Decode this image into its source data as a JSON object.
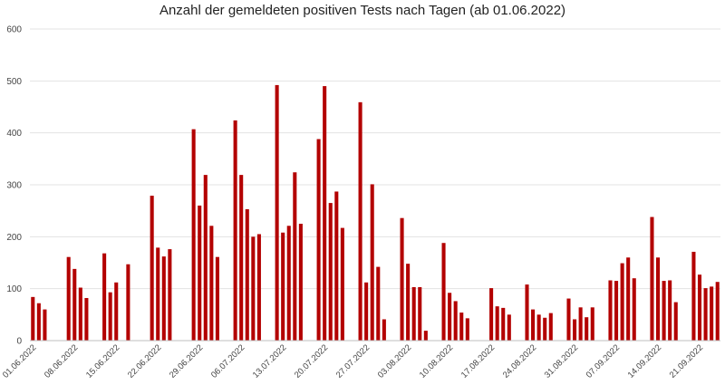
{
  "chart_data": {
    "type": "bar",
    "title": "Anzahl der gemeldeten positiven Tests nach Tagen (ab 01.06.2022)",
    "xlabel": "",
    "ylabel": "",
    "ylim": [
      0,
      600
    ],
    "yticks": [
      0,
      100,
      200,
      300,
      400,
      500,
      600
    ],
    "grid": true,
    "legend": "none",
    "bar_color": "#B30000",
    "x_tick_labels": [
      "01.06.2022",
      "08.06.2022",
      "15.06.2022",
      "22.06.2022",
      "29.06.2022",
      "06.07.2022",
      "13.07.2022",
      "20.07.2022",
      "27.07.2022",
      "03.08.2022",
      "10.08.2022",
      "17.08.2022",
      "24.08.2022",
      "31.08.2022",
      "07.09.2022",
      "14.09.2022",
      "21.09.2022"
    ],
    "categories": [
      "01.06.2022",
      "02.06.2022",
      "03.06.2022",
      "04.06.2022",
      "05.06.2022",
      "06.06.2022",
      "07.06.2022",
      "08.06.2022",
      "09.06.2022",
      "10.06.2022",
      "11.06.2022",
      "12.06.2022",
      "13.06.2022",
      "14.06.2022",
      "15.06.2022",
      "16.06.2022",
      "17.06.2022",
      "18.06.2022",
      "19.06.2022",
      "20.06.2022",
      "21.06.2022",
      "22.06.2022",
      "23.06.2022",
      "24.06.2022",
      "25.06.2022",
      "26.06.2022",
      "27.06.2022",
      "28.06.2022",
      "29.06.2022",
      "30.06.2022",
      "01.07.2022",
      "02.07.2022",
      "03.07.2022",
      "04.07.2022",
      "05.07.2022",
      "06.07.2022",
      "07.07.2022",
      "08.07.2022",
      "09.07.2022",
      "10.07.2022",
      "11.07.2022",
      "12.07.2022",
      "13.07.2022",
      "14.07.2022",
      "15.07.2022",
      "16.07.2022",
      "17.07.2022",
      "18.07.2022",
      "19.07.2022",
      "20.07.2022",
      "21.07.2022",
      "22.07.2022",
      "23.07.2022",
      "24.07.2022",
      "25.07.2022",
      "26.07.2022",
      "27.07.2022",
      "28.07.2022",
      "29.07.2022",
      "30.07.2022",
      "31.07.2022",
      "01.08.2022",
      "02.08.2022",
      "03.08.2022",
      "04.08.2022",
      "05.08.2022",
      "06.08.2022",
      "07.08.2022",
      "08.08.2022",
      "09.08.2022",
      "10.08.2022",
      "11.08.2022",
      "12.08.2022",
      "13.08.2022",
      "14.08.2022",
      "15.08.2022",
      "16.08.2022",
      "17.08.2022",
      "18.08.2022",
      "19.08.2022",
      "20.08.2022",
      "21.08.2022",
      "22.08.2022",
      "23.08.2022",
      "24.08.2022",
      "25.08.2022",
      "26.08.2022",
      "27.08.2022",
      "28.08.2022",
      "29.08.2022",
      "30.08.2022",
      "31.08.2022",
      "01.09.2022",
      "02.09.2022",
      "03.09.2022",
      "04.09.2022",
      "05.09.2022",
      "06.09.2022",
      "07.09.2022",
      "08.09.2022",
      "09.09.2022",
      "10.09.2022",
      "11.09.2022",
      "12.09.2022",
      "13.09.2022",
      "14.09.2022",
      "15.09.2022",
      "16.09.2022",
      "17.09.2022",
      "18.09.2022",
      "19.09.2022",
      "20.09.2022",
      "21.09.2022",
      "22.09.2022",
      "23.09.2022",
      "24.09.2022"
    ],
    "values": [
      84,
      72,
      60,
      0,
      0,
      0,
      161,
      138,
      102,
      82,
      0,
      0,
      168,
      93,
      112,
      0,
      147,
      0,
      0,
      0,
      279,
      179,
      162,
      176,
      0,
      0,
      0,
      407,
      260,
      319,
      221,
      161,
      0,
      0,
      424,
      319,
      253,
      200,
      205,
      0,
      0,
      492,
      208,
      221,
      324,
      225,
      0,
      0,
      388,
      490,
      265,
      287,
      217,
      0,
      0,
      459,
      112,
      301,
      142,
      41,
      0,
      0,
      236,
      148,
      103,
      103,
      19,
      0,
      0,
      188,
      92,
      76,
      54,
      43,
      0,
      0,
      0,
      101,
      66,
      63,
      50,
      0,
      0,
      108,
      60,
      50,
      44,
      53,
      0,
      0,
      81,
      41,
      64,
      45,
      64,
      0,
      0,
      116,
      115,
      149,
      160,
      120,
      0,
      0,
      238,
      160,
      115,
      116,
      74,
      0,
      0,
      171,
      127,
      101,
      104,
      113
    ]
  }
}
